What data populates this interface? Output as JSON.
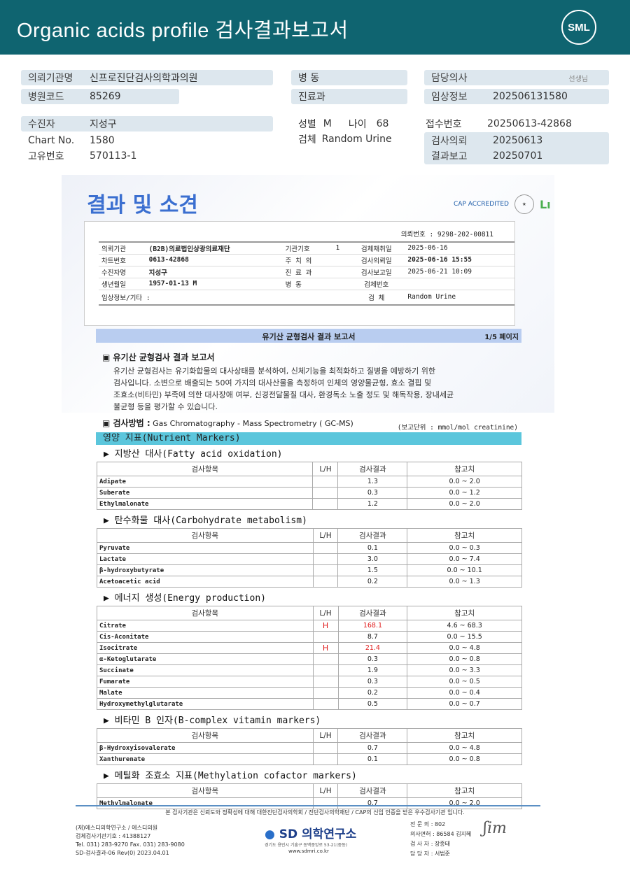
{
  "header": {
    "title": "Organic acids profile 검사결과보고서",
    "logo": "SML"
  },
  "patient": {
    "fields_left": [
      {
        "k": "의뢰기관명",
        "v": "신프로진단검사의학과의원"
      },
      {
        "k": "병원코드",
        "v": "85269"
      }
    ],
    "fields_mid": [
      {
        "k": "병 동",
        "v": ""
      },
      {
        "k": "진료과",
        "v": ""
      }
    ],
    "fields_right": [
      {
        "k": "담당의사",
        "v": "",
        "suffix": "선생님"
      },
      {
        "k": "임상정보",
        "v": "202506131580"
      }
    ],
    "subject": {
      "k": "수진자",
      "v": "지성구"
    },
    "chart": {
      "k": "Chart No.",
      "v": "1580"
    },
    "uid": {
      "k": "고유번호",
      "v": "570113-1"
    },
    "sex_k": "성별",
    "sex": "M",
    "age_k": "나이",
    "age": "68",
    "spec_k": "검체",
    "spec": "Random Urine",
    "receipt": {
      "k": "접수번호",
      "v": "20250613-42868"
    },
    "req": {
      "k": "검사의뢰",
      "v": "20250613"
    },
    "res": {
      "k": "결과보고",
      "v": "20250701"
    }
  },
  "report": {
    "title": "결과 및 소견",
    "cert": "CAP ACCREDITED",
    "req_no_label": "의뢰번호 : 9298-202-00811",
    "rows": [
      [
        "의뢰기관",
        "(B2B)의료법인상광의료재단",
        "기관기호",
        "1",
        "검체채취일",
        "2025-06-16"
      ],
      [
        "차트번호",
        "0613-42868",
        "주 치 의",
        "",
        "검사의뢰일",
        "2025-06-16 15:55"
      ],
      [
        "수진자명",
        "지성구",
        "진 료 과",
        "",
        "검사보고일",
        "2025-06-21 10:09"
      ],
      [
        "생년월일",
        "1957-01-13        M",
        "병     동",
        "",
        "검체번호",
        ""
      ]
    ],
    "clinical": "임상정보/기타 :",
    "spec_label": "검     체",
    "spec_value": "Random Urine"
  },
  "bar": {
    "title": "유기산 균형검사 결과 보고서",
    "page": "1/5 페이지"
  },
  "intro": {
    "heading": "▣ 유기산 균형검사 결과 보고서",
    "lines": [
      "유기산 균형검사는 유기화합물의 대사상태를 분석하여, 신체기능을 최적화하고 질병을 예방하기 위한",
      "검사입니다. 소변으로 배출되는 50여 가지의 대사산물을 측정하여 인체의 영양물균형, 효소 결핍 및",
      "조효소(비타민) 부족에 의한 대사장애 여부, 신경전달물질 대사, 환경독소 노출 정도 및 해독작용, 장내세균",
      "불균형 등을 평가할 수 있습니다."
    ],
    "method_label": "▣ 검사방법 :",
    "method": "Gas Chromatography  - Mass Spectrometry ( GC-MS)",
    "unit": "(보고단위 : mmol/mol creatinine)"
  },
  "nutrient_title": "영양 지표(Nutrient Markers)",
  "columns": [
    "검사항목",
    "L/H",
    "검사결과",
    "참고치"
  ],
  "sections": [
    {
      "title": "▶ 지방산 대사(Fatty acid oxidation)",
      "rows": [
        [
          "Adipate",
          "",
          "1.3",
          "0.0 ~ 2.0"
        ],
        [
          "Suberate",
          "",
          "0.3",
          "0.0 ~ 1.2"
        ],
        [
          "Ethylmalonate",
          "",
          "1.2",
          "0.0 ~ 2.0"
        ]
      ]
    },
    {
      "title": "▶ 탄수화물 대사(Carbohydrate metabolism)",
      "rows": [
        [
          "Pyruvate",
          "",
          "0.1",
          "0.0 ~ 0.3"
        ],
        [
          "Lactate",
          "",
          "3.0",
          "0.0 ~ 7.4"
        ],
        [
          "β-hydroxybutyrate",
          "",
          "1.5",
          "0.0 ~ 10.1"
        ],
        [
          "Acetoacetic acid",
          "",
          "0.2",
          "0.0 ~ 1.3"
        ]
      ]
    },
    {
      "title": "▶ 에너지 생성(Energy production)",
      "rows": [
        [
          "Citrate",
          "H",
          "168.1",
          "4.6 ~ 68.3"
        ],
        [
          "Cis-Aconitate",
          "",
          "8.7",
          "0.0 ~ 15.5"
        ],
        [
          "Isocitrate",
          "H",
          "21.4",
          "0.0 ~ 4.8"
        ],
        [
          " α-Ketoglutarate",
          "",
          "0.3",
          "0.0 ~ 0.8"
        ],
        [
          "Succinate",
          "",
          "1.9",
          "0.0 ~ 3.3"
        ],
        [
          "Fumarate",
          "",
          "0.3",
          "0.0 ~ 0.5"
        ],
        [
          "Malate",
          "",
          "0.2",
          "0.0 ~ 0.4"
        ],
        [
          "Hydroxymethylglutarate",
          "",
          "0.5",
          "0.0 ~ 0.7"
        ]
      ]
    },
    {
      "title": "▶ 비타민 B 인자(B-complex vitamin markers)",
      "rows": [
        [
          "β-Hydroxyisovalerate",
          "",
          "0.7",
          "0.0 ~ 4.8"
        ],
        [
          "Xanthurenate",
          "",
          "0.1",
          "0.0 ~ 0.8"
        ]
      ]
    },
    {
      "title": "▶ 메틸화 조효소 지표(Methylation cofactor markers)",
      "rows": [
        [
          "Methylmalonate",
          "",
          "0.7",
          "0.0 ~ 2.0"
        ]
      ]
    }
  ],
  "footer": {
    "notice": "본 검사기관은 신뢰도와 정확성에 대해 대한진단검사의학회 / 진단검사의학재단 / CAP의 신입 인증을 받은 우수검사기관 입니다.",
    "left": [
      "(재)에스디의학연구소 / 에스디의원",
      "검체검사기관기호 : 41388127",
      "Tel. 031) 283-9270      Fax. 031) 283-9080",
      "SD-검사결과-06 Rev(0) 2023.04.01"
    ],
    "brand": "SD 의학연구소",
    "address": "경기도 용인시 기흥구 동백중앙로 53-21(중동)",
    "web": "www.sdmri.co.kr",
    "right": [
      "전 문 의 :  802",
      "의사면허 :  86584 김지혜",
      "검 사 자 :        장종태",
      "담 당 자 :        서범준"
    ]
  },
  "colors": {
    "accent": "#0f6470",
    "high": "#e01b1b",
    "section_bar": "#5bc6dc"
  }
}
